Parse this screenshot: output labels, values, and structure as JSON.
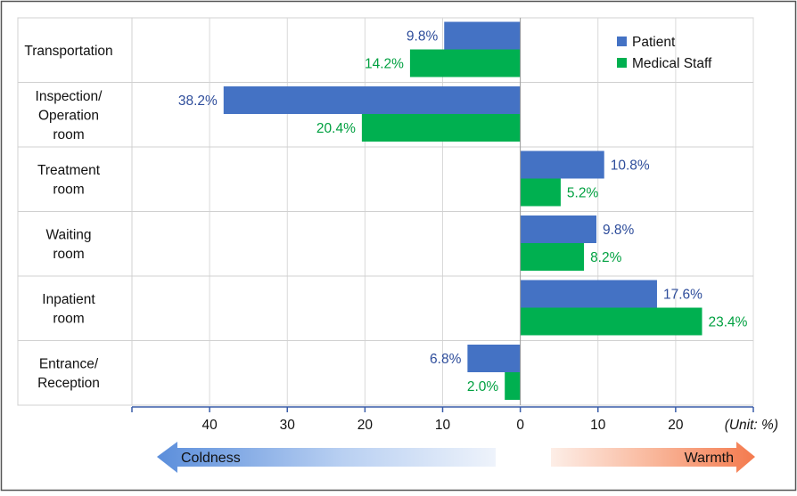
{
  "chart_data": {
    "type": "bar",
    "orientation": "horizontal",
    "categories": [
      "Transportation",
      "Inspection/\nOperation\nroom",
      "Treatment\nroom",
      "Waiting\nroom",
      "Inpatient\nroom",
      "Entrance/\nReception"
    ],
    "series": [
      {
        "name": "Patient",
        "color": "#4472C4",
        "label_color": "#2E4D9B",
        "values": [
          -9.8,
          -38.2,
          10.8,
          9.8,
          17.6,
          -6.8
        ],
        "labels": [
          "9.8%",
          "38.2%",
          "10.8%",
          "9.8%",
          "17.6%",
          "6.8%"
        ]
      },
      {
        "name": "Medical Staff",
        "color": "#00B050",
        "label_color": "#00A040",
        "values": [
          -14.2,
          -20.4,
          5.2,
          8.2,
          23.4,
          -2.0
        ],
        "labels": [
          "14.2%",
          "20.4%",
          "5.2%",
          "8.2%",
          "23.4%",
          "2.0%"
        ]
      }
    ],
    "xlim": [
      -50,
      30
    ],
    "x_ticks": [
      -40,
      -30,
      -20,
      -10,
      0,
      10,
      20
    ],
    "x_tick_labels": [
      "40",
      "30",
      "20",
      "10",
      "0",
      "10",
      "20"
    ],
    "unit_label": "(Unit: %)",
    "legend_position": "top-right",
    "grid": true,
    "arrows": {
      "left_label": "Coldness",
      "right_label": "Warmth"
    }
  }
}
